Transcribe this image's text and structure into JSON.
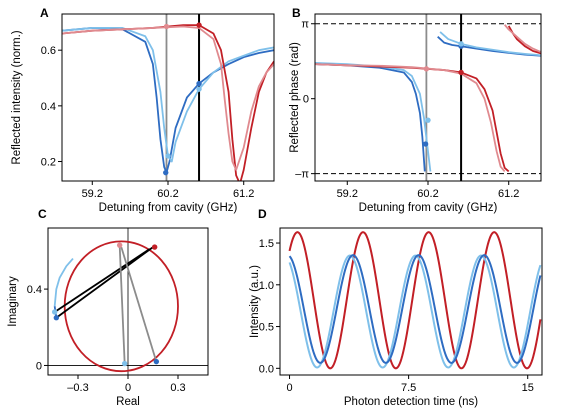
{
  "colors": {
    "red": "#c21f26",
    "red_light": "#e08a8f",
    "blue": "#2e6cc2",
    "blue_light": "#7fc0ea",
    "gray": "#8c8c8c",
    "black": "#000000"
  },
  "chart_data": [
    {
      "panel": "A",
      "type": "line",
      "xlabel": "Detuning from cavity (GHz)",
      "ylabel": "Reflected intensity (norm.)",
      "xlim": [
        58.8,
        61.6
      ],
      "ylim": [
        0.13,
        0.73
      ],
      "xticks": [
        59.2,
        60.2,
        61.2
      ],
      "xtick_labels": [
        "59.2",
        "60.2",
        "61.2"
      ],
      "yticks": [
        0.2,
        0.4,
        0.6
      ],
      "ytick_labels": [
        "0.2",
        "0.4",
        "0.6"
      ],
      "vlines": [
        {
          "x": 60.18,
          "color": "gray"
        },
        {
          "x": 60.61,
          "color": "black"
        }
      ],
      "series": [
        {
          "color": "blue",
          "x": [
            58.8,
            59.2,
            59.6,
            59.9,
            60.0,
            60.05,
            60.1,
            60.15,
            60.18,
            60.22,
            60.3,
            60.45,
            60.61,
            60.8,
            61.0,
            61.2,
            61.4,
            61.6
          ],
          "y": [
            0.67,
            0.68,
            0.675,
            0.63,
            0.55,
            0.43,
            0.28,
            0.18,
            0.16,
            0.2,
            0.32,
            0.43,
            0.48,
            0.52,
            0.55,
            0.575,
            0.59,
            0.6
          ]
        },
        {
          "color": "blue_light",
          "x": [
            58.8,
            59.2,
            59.6,
            59.9,
            60.0,
            60.1,
            60.15,
            60.2,
            60.25,
            60.3,
            60.45,
            60.61,
            60.8,
            61.0,
            61.2,
            61.4,
            61.6
          ],
          "y": [
            0.67,
            0.68,
            0.68,
            0.65,
            0.6,
            0.45,
            0.32,
            0.22,
            0.2,
            0.27,
            0.38,
            0.46,
            0.52,
            0.56,
            0.58,
            0.6,
            0.61
          ]
        },
        {
          "color": "red",
          "x": [
            58.8,
            59.2,
            59.6,
            60.0,
            60.4,
            60.61,
            60.8,
            60.9,
            61.0,
            61.05,
            61.1,
            61.15,
            61.2,
            61.3,
            61.4,
            61.5,
            61.6
          ],
          "y": [
            0.66,
            0.67,
            0.675,
            0.68,
            0.69,
            0.69,
            0.66,
            0.6,
            0.45,
            0.28,
            0.15,
            0.12,
            0.17,
            0.32,
            0.45,
            0.52,
            0.56
          ]
        },
        {
          "color": "red_light",
          "x": [
            58.8,
            59.2,
            59.6,
            60.0,
            60.4,
            60.61,
            60.8,
            60.9,
            60.95,
            61.0,
            61.05,
            61.1,
            61.2,
            61.3,
            61.4,
            61.5,
            61.6
          ],
          "y": [
            0.66,
            0.67,
            0.675,
            0.68,
            0.685,
            0.68,
            0.64,
            0.55,
            0.42,
            0.3,
            0.2,
            0.17,
            0.25,
            0.38,
            0.47,
            0.52,
            0.55
          ]
        }
      ],
      "markers": [
        {
          "x": 60.17,
          "y": 0.16,
          "color": "blue"
        },
        {
          "x": 60.2,
          "y": 0.22,
          "color": "blue_light"
        },
        {
          "x": 60.61,
          "y": 0.48,
          "color": "blue"
        },
        {
          "x": 60.61,
          "y": 0.46,
          "color": "blue_light"
        },
        {
          "x": 60.18,
          "y": 0.685,
          "color": "red_light"
        },
        {
          "x": 60.61,
          "y": 0.69,
          "color": "red"
        }
      ]
    },
    {
      "panel": "B",
      "type": "line",
      "xlabel": "Detuning from cavity (GHz)",
      "ylabel": "Reflected phase (rad)",
      "xlim": [
        58.8,
        61.6
      ],
      "ylim": [
        -3.45,
        3.55
      ],
      "xticks": [
        59.2,
        60.2,
        61.2
      ],
      "xtick_labels": [
        "59.2",
        "60.2",
        "61.2"
      ],
      "yticks": [
        3.14159,
        0,
        -3.14159
      ],
      "ytick_labels": [
        "π",
        "0",
        "–π"
      ],
      "hlines_dashed": [
        3.14159,
        -3.14159
      ],
      "vlines": [
        {
          "x": 60.18,
          "color": "gray"
        },
        {
          "x": 60.61,
          "color": "black"
        }
      ],
      "series": [
        {
          "color": "blue",
          "x": [
            58.8,
            59.2,
            59.6,
            59.9,
            60.0,
            60.05,
            60.1,
            60.13,
            60.16
          ],
          "y": [
            1.45,
            1.4,
            1.3,
            1.1,
            0.7,
            0.2,
            -0.6,
            -1.6,
            -3.05
          ]
        },
        {
          "color": "blue",
          "x": [
            60.32,
            60.4,
            60.5,
            60.61,
            60.8,
            61.0,
            61.2,
            61.4,
            61.6
          ],
          "y": [
            2.6,
            2.35,
            2.25,
            2.2,
            2.1,
            2.0,
            1.92,
            1.85,
            1.8
          ]
        },
        {
          "color": "blue_light",
          "x": [
            58.8,
            59.2,
            59.6,
            59.9,
            60.0,
            60.1,
            60.15,
            60.2,
            60.23
          ],
          "y": [
            1.5,
            1.45,
            1.35,
            1.2,
            0.95,
            0.2,
            -0.8,
            -2.2,
            -3.05
          ]
        },
        {
          "color": "blue_light",
          "x": [
            60.35,
            60.45,
            60.61,
            60.8,
            61.0,
            61.2,
            61.4,
            61.6
          ],
          "y": [
            2.8,
            2.5,
            2.3,
            2.15,
            2.05,
            1.95,
            1.88,
            1.82
          ]
        },
        {
          "color": "red",
          "x": [
            58.8,
            59.2,
            59.6,
            60.0,
            60.4,
            60.61,
            60.8,
            60.9,
            61.0,
            61.05,
            61.1,
            61.15,
            61.2
          ],
          "y": [
            1.45,
            1.4,
            1.35,
            1.3,
            1.2,
            1.1,
            0.85,
            0.4,
            -0.5,
            -1.4,
            -2.3,
            -2.9,
            -3.05
          ]
        },
        {
          "color": "red",
          "x": [
            61.2,
            61.25,
            61.3,
            61.4,
            61.5,
            61.6
          ],
          "y": [
            3.05,
            2.75,
            2.5,
            2.2,
            2.0,
            1.9
          ]
        },
        {
          "color": "red_light",
          "x": [
            58.8,
            59.2,
            59.6,
            60.0,
            60.4,
            60.61,
            60.8,
            60.9,
            60.98,
            61.05,
            61.1,
            61.15
          ],
          "y": [
            1.45,
            1.4,
            1.38,
            1.32,
            1.2,
            1.05,
            0.65,
            0.0,
            -1.0,
            -2.2,
            -2.85,
            -3.05
          ]
        },
        {
          "color": "red_light",
          "x": [
            61.15,
            61.2,
            61.3,
            61.4,
            61.5,
            61.6
          ],
          "y": [
            3.1,
            2.9,
            2.6,
            2.3,
            2.1,
            1.95
          ]
        }
      ],
      "markers": [
        {
          "x": 60.17,
          "y": -1.9,
          "color": "blue"
        },
        {
          "x": 60.2,
          "y": -0.9,
          "color": "blue_light"
        },
        {
          "x": 60.61,
          "y": 2.2,
          "color": "blue"
        },
        {
          "x": 60.61,
          "y": 2.3,
          "color": "blue_light"
        },
        {
          "x": 60.18,
          "y": 1.25,
          "color": "red_light"
        },
        {
          "x": 60.61,
          "y": 1.1,
          "color": "red"
        }
      ]
    },
    {
      "panel": "C",
      "type": "line",
      "xlabel": "Real",
      "ylabel": "Imaginary",
      "xlim": [
        -0.48,
        0.48
      ],
      "ylim": [
        -0.05,
        0.72
      ],
      "xticks": [
        -0.3,
        0,
        0.3
      ],
      "xtick_labels": [
        "–0.3",
        "0",
        "0.3"
      ],
      "yticks": [
        0,
        0.4
      ],
      "ytick_labels": [
        "0",
        "0.4"
      ],
      "zero_axes": true,
      "circle": {
        "center": [
          -0.04,
          0.31
        ],
        "radius": 0.34,
        "color": "red"
      },
      "series": [
        {
          "color": "blue_light",
          "x": [
            -0.33,
            -0.37,
            -0.41,
            -0.43,
            -0.44
          ],
          "y": [
            0.56,
            0.52,
            0.46,
            0.4,
            0.31
          ]
        },
        {
          "color": "blue",
          "x": [
            -0.44,
            -0.43
          ],
          "y": [
            0.31,
            0.25
          ]
        }
      ],
      "segments": [
        {
          "x": [
            -0.43,
            0.15
          ],
          "y": [
            0.25,
            0.62
          ],
          "color": "black"
        },
        {
          "x": [
            -0.44,
            0.13
          ],
          "y": [
            0.28,
            0.61
          ],
          "color": "black"
        },
        {
          "x": [
            -0.05,
            -0.02
          ],
          "y": [
            0.63,
            0.01
          ],
          "color": "gray"
        },
        {
          "x": [
            -0.04,
            0.17
          ],
          "y": [
            0.62,
            0.02
          ],
          "color": "gray"
        }
      ],
      "markers": [
        {
          "x": 0.16,
          "y": 0.62,
          "color": "red"
        },
        {
          "x": -0.05,
          "y": 0.63,
          "color": "red_light"
        },
        {
          "x": -0.43,
          "y": 0.25,
          "color": "blue"
        },
        {
          "x": -0.44,
          "y": 0.28,
          "color": "blue_light"
        },
        {
          "x": 0.17,
          "y": 0.02,
          "color": "blue"
        },
        {
          "x": -0.02,
          "y": 0.01,
          "color": "blue_light"
        }
      ]
    },
    {
      "panel": "D",
      "type": "line",
      "xlabel": "Photon detection time (ns)",
      "ylabel": "Intensity (a.u.)",
      "xlim": [
        -0.6,
        15.9
      ],
      "ylim": [
        -0.08,
        1.68
      ],
      "xticks": [
        0,
        7.5,
        15
      ],
      "xtick_labels": [
        "0",
        "7.5",
        "15"
      ],
      "yticks": [
        0,
        0.5,
        1.0,
        1.5
      ],
      "ytick_labels": [
        "0.0",
        "0.5",
        "1.0",
        "1.5"
      ],
      "sinusoids": [
        {
          "color": "red",
          "amplitude": 0.815,
          "offset": 0.815,
          "period": 4.13,
          "phase_peak": 0.5,
          "x_start": 0,
          "x_end": 15.8
        },
        {
          "color": "blue_light",
          "amplitude": 0.67,
          "offset": 0.68,
          "period": 4.13,
          "phase_peak": 3.8,
          "x_start": 0,
          "x_end": 15.8
        },
        {
          "color": "blue",
          "amplitude": 0.645,
          "offset": 0.71,
          "period": 4.13,
          "phase_peak": 4.0,
          "x_start": 0,
          "x_end": 15.8
        }
      ]
    }
  ]
}
